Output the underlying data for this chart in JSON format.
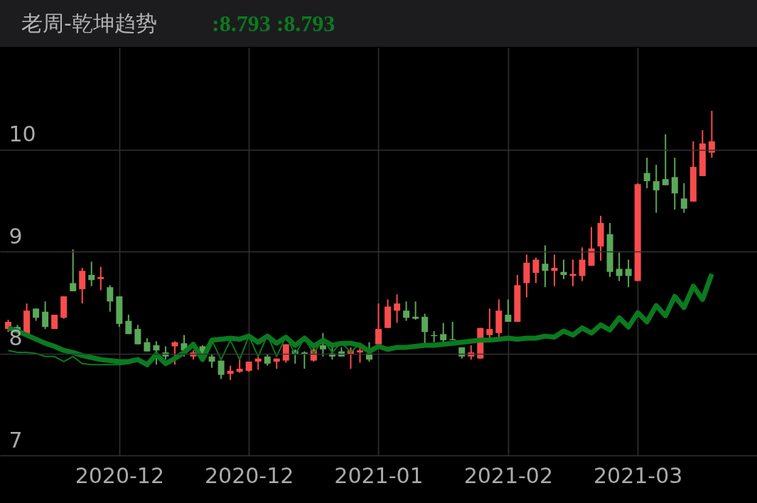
{
  "chart_data": {
    "type": "candlestick",
    "title": "老周-乾坤趋势",
    "subtitle": ":8.793  :8.793",
    "categories": [
      null,
      null,
      null,
      null,
      null,
      null,
      null,
      null,
      null,
      null,
      null,
      null,
      "2020-12",
      null,
      null,
      null,
      null,
      null,
      null,
      null,
      null,
      null,
      null,
      null,
      null,
      null,
      "2020-12",
      null,
      null,
      null,
      null,
      null,
      null,
      null,
      null,
      null,
      null,
      null,
      null,
      null,
      "2021-01",
      null,
      null,
      null,
      null,
      null,
      null,
      null,
      null,
      null,
      null,
      null,
      null,
      null,
      "2021-02",
      null,
      null,
      null,
      null,
      null,
      null,
      null,
      null,
      null,
      null,
      null,
      null,
      null,
      "2021-03",
      null,
      null,
      null,
      null,
      null,
      null,
      null,
      null,
      null,
      null,
      null,
      null
    ],
    "ohlc": [
      [
        8.24,
        8.33,
        8.21,
        8.31
      ],
      [
        8.26,
        8.28,
        8.22,
        8.23
      ],
      [
        8.18,
        8.49,
        8.18,
        8.42
      ],
      [
        8.44,
        8.44,
        8.32,
        8.35
      ],
      [
        8.41,
        8.51,
        8.24,
        8.26
      ],
      [
        8.24,
        8.38,
        8.24,
        8.38
      ],
      [
        8.35,
        8.56,
        8.34,
        8.56
      ],
      [
        8.69,
        9.02,
        8.61,
        8.61
      ],
      [
        8.63,
        8.84,
        8.49,
        8.81
      ],
      [
        8.77,
        8.9,
        8.66,
        8.72
      ],
      [
        8.73,
        8.85,
        8.62,
        8.75
      ],
      [
        8.65,
        8.67,
        8.41,
        8.51
      ],
      [
        8.56,
        8.56,
        8.26,
        8.29
      ],
      [
        8.32,
        8.38,
        8.19,
        8.19
      ],
      [
        8.24,
        8.28,
        8.09,
        8.09
      ],
      [
        8.11,
        8.15,
        8.02,
        8.02
      ],
      [
        8.08,
        8.12,
        7.89,
        8.03
      ],
      [
        8.01,
        8.07,
        7.94,
        7.97
      ],
      [
        8.07,
        8.12,
        7.89,
        8.11
      ],
      [
        8.1,
        8.18,
        7.97,
        8.03
      ],
      [
        7.97,
        8.03,
        7.94,
        8.01
      ],
      [
        8.07,
        8.08,
        7.99,
        8.0
      ],
      [
        7.97,
        7.99,
        7.86,
        7.92
      ],
      [
        7.93,
        7.93,
        7.75,
        7.79
      ],
      [
        7.8,
        7.88,
        7.74,
        7.83
      ],
      [
        7.82,
        7.94,
        7.81,
        7.85
      ],
      [
        7.83,
        7.92,
        7.82,
        7.92
      ],
      [
        7.92,
        7.97,
        7.84,
        7.95
      ],
      [
        7.97,
        7.99,
        7.88,
        7.9
      ],
      [
        7.92,
        7.95,
        7.85,
        7.95
      ],
      [
        7.93,
        8.09,
        7.91,
        8.09
      ],
      [
        8.03,
        8.04,
        7.9,
        7.99
      ],
      [
        8.01,
        8.02,
        7.85,
        7.99
      ],
      [
        7.93,
        8.06,
        7.92,
        8.04
      ],
      [
        8.08,
        8.2,
        7.97,
        8.04
      ],
      [
        8.0,
        8.06,
        7.94,
        7.97
      ],
      [
        8.02,
        8.06,
        7.97,
        7.97
      ],
      [
        7.99,
        8.06,
        7.85,
        8.03
      ],
      [
        8.01,
        8.06,
        7.91,
        8.03
      ],
      [
        8.0,
        8.11,
        7.92,
        7.94
      ],
      [
        8.09,
        8.49,
        8.09,
        8.24
      ],
      [
        8.25,
        8.53,
        8.25,
        8.46
      ],
      [
        8.42,
        8.58,
        8.3,
        8.49
      ],
      [
        8.42,
        8.51,
        8.32,
        8.35
      ],
      [
        8.36,
        8.51,
        8.33,
        8.34
      ],
      [
        8.36,
        8.39,
        8.1,
        8.21
      ],
      [
        8.18,
        8.22,
        8.11,
        8.17
      ],
      [
        8.19,
        8.3,
        8.11,
        8.13
      ],
      [
        8.14,
        8.31,
        8.13,
        8.13
      ],
      [
        8.06,
        8.06,
        7.95,
        7.97
      ],
      [
        7.97,
        8.08,
        7.94,
        8.01
      ],
      [
        7.95,
        8.25,
        7.95,
        8.25
      ],
      [
        8.18,
        8.44,
        8.15,
        8.24
      ],
      [
        8.2,
        8.53,
        8.16,
        8.42
      ],
      [
        8.38,
        8.53,
        8.31,
        8.31
      ],
      [
        8.31,
        8.77,
        8.31,
        8.67
      ],
      [
        8.69,
        8.97,
        8.55,
        8.89
      ],
      [
        8.79,
        8.94,
        8.69,
        8.92
      ],
      [
        8.88,
        9.06,
        8.65,
        8.81
      ],
      [
        8.81,
        8.97,
        8.66,
        8.84
      ],
      [
        8.8,
        8.92,
        8.73,
        8.77
      ],
      [
        8.76,
        8.92,
        8.66,
        8.78
      ],
      [
        8.76,
        9.04,
        8.71,
        8.92
      ],
      [
        8.86,
        9.24,
        8.86,
        9.03
      ],
      [
        9.05,
        9.35,
        8.91,
        9.28
      ],
      [
        9.17,
        9.28,
        8.75,
        8.8
      ],
      [
        8.83,
        8.99,
        8.71,
        8.76
      ],
      [
        8.83,
        8.92,
        8.65,
        8.76
      ],
      [
        8.71,
        9.67,
        8.71,
        9.66
      ],
      [
        9.77,
        9.92,
        9.62,
        9.69
      ],
      [
        9.69,
        9.85,
        9.38,
        9.6
      ],
      [
        9.71,
        10.15,
        9.65,
        9.65
      ],
      [
        9.73,
        9.92,
        9.41,
        9.57
      ],
      [
        9.52,
        9.67,
        9.38,
        9.42
      ],
      [
        9.49,
        10.08,
        9.49,
        9.83
      ],
      [
        9.74,
        10.19,
        9.74,
        10.06
      ],
      [
        9.97,
        10.38,
        9.92,
        10.08
      ],
      null,
      null,
      null,
      null
    ],
    "colors": [
      "#f94c4c",
      "#5aa85a",
      "#f94c4c",
      "#5aa85a",
      "#5aa85a",
      "#f94c4c",
      "#f94c4c",
      "#5aa85a",
      "#f94c4c",
      "#5aa85a",
      "#f94c4c",
      "#5aa85a",
      "#5aa85a",
      "#5aa85a",
      "#5aa85a",
      "#5aa85a",
      "#5aa85a",
      "#5aa85a",
      "#f94c4c",
      "#5aa85a",
      "#f94c4c",
      "#5aa85a",
      "#5aa85a",
      "#5aa85a",
      "#f94c4c",
      "#f94c4c",
      "#f94c4c",
      "#f94c4c",
      "#5aa85a",
      "#f94c4c",
      "#f94c4c",
      "#5aa85a",
      "#5aa85a",
      "#f94c4c",
      "#5aa85a",
      "#5aa85a",
      "#5aa85a",
      "#f94c4c",
      "#f94c4c",
      "#5aa85a",
      "#f94c4c",
      "#f94c4c",
      "#f94c4c",
      "#5aa85a",
      "#5aa85a",
      "#5aa85a",
      "#5aa85a",
      "#5aa85a",
      "#5aa85a",
      "#5aa85a",
      "#f94c4c",
      "#f94c4c",
      "#f94c4c",
      "#f94c4c",
      "#5aa85a",
      "#f94c4c",
      "#f94c4c",
      "#f94c4c",
      "#5aa85a",
      "#f94c4c",
      "#5aa85a",
      "#f94c4c",
      "#f94c4c",
      "#f94c4c",
      "#f94c4c",
      "#5aa85a",
      "#5aa85a",
      "#5aa85a",
      "#f94c4c",
      "#5aa85a",
      "#5aa85a",
      "#5aa85a",
      "#5aa85a",
      "#5aa85a",
      "#f94c4c",
      "#f94c4c",
      "#f94c4c",
      null,
      null,
      null,
      null
    ],
    "series": [
      {
        "type": "line",
        "color": "#0b7a1f",
        "values": [
          8.25,
          8.22,
          8.18,
          8.14,
          8.1,
          8.07,
          8.03,
          8.01,
          7.98,
          7.96,
          7.94,
          7.93,
          7.92,
          7.92,
          7.94,
          7.89,
          7.99,
          7.9,
          7.95,
          8.01,
          8.09,
          7.94,
          8.13,
          8.14,
          8.15,
          8.14,
          8.17,
          8.11,
          8.17,
          8.1,
          8.16,
          8.08,
          8.15,
          8.07,
          8.13,
          8.08,
          8.1,
          8.1,
          8.08,
          8.02,
          8.07,
          8.04,
          8.06,
          8.06,
          8.07,
          8.08,
          8.08,
          8.09,
          8.1,
          8.11,
          8.12,
          8.13,
          8.13,
          8.14,
          8.15,
          8.14,
          8.15,
          8.15,
          8.17,
          8.16,
          8.22,
          8.18,
          8.25,
          8.2,
          8.28,
          8.23,
          8.35,
          8.26,
          8.4,
          8.31,
          8.47,
          8.37,
          8.56,
          8.45,
          8.66,
          8.53,
          8.78,
          null,
          null,
          null,
          null
        ]
      },
      {
        "type": "line",
        "color": "#0b7a1f",
        "values": [
          8.03,
          8.01,
          8.01,
          8.0,
          7.97,
          7.97,
          7.92,
          7.97,
          7.9,
          7.89,
          7.89,
          7.89,
          7.89,
          7.9,
          null,
          null,
          null,
          null,
          null,
          null,
          null,
          null,
          8.13,
          7.94,
          8.13,
          7.94,
          8.17,
          7.97,
          8.18,
          7.97,
          8.17,
          7.99,
          8.15,
          8.0,
          8.14,
          8.01,
          8.11,
          8.01,
          8.1,
          8.01,
          null,
          null,
          null,
          null,
          null,
          null,
          null,
          null,
          null,
          null,
          null,
          null,
          null,
          null,
          null,
          null,
          null,
          null,
          null,
          null,
          null,
          null,
          null,
          null,
          null,
          null,
          null,
          null,
          null,
          null,
          null,
          null,
          null,
          null,
          null,
          null,
          null,
          null,
          null,
          null,
          null
        ]
      }
    ],
    "ylim": [
      7,
      11
    ],
    "yticks": [
      7,
      8,
      9,
      10
    ],
    "grid": true
  }
}
